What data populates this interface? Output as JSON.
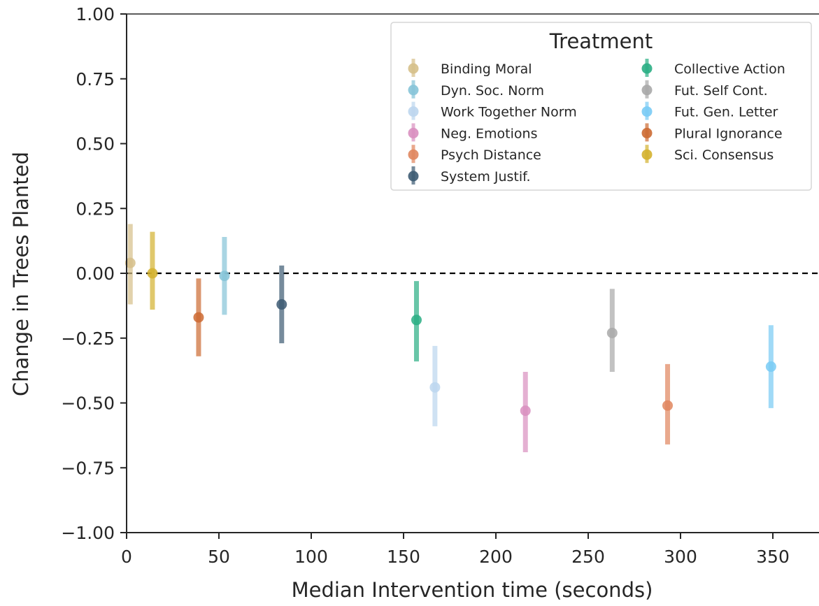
{
  "chart_data": {
    "type": "scatter",
    "subtype": "errorbar",
    "xlabel": "Median Intervention time (seconds)",
    "ylabel": "Change in Trees Planted",
    "xlim": [
      0,
      375
    ],
    "ylim": [
      -1.0,
      1.0
    ],
    "x_ticks": [
      "0",
      "50",
      "100",
      "150",
      "200",
      "250",
      "300",
      "350"
    ],
    "x_tick_values": [
      0,
      50,
      100,
      150,
      200,
      250,
      300,
      350
    ],
    "y_ticks": [
      "−1.00",
      "−0.75",
      "−0.50",
      "−0.25",
      "0.00",
      "0.25",
      "0.50",
      "0.75",
      "1.00"
    ],
    "y_tick_values": [
      -1.0,
      -0.75,
      -0.5,
      -0.25,
      0.0,
      0.25,
      0.5,
      0.75,
      1.0
    ],
    "reference_line": {
      "y": 0.0,
      "style": "dashed",
      "color": "#000000"
    },
    "grid": false,
    "legend": {
      "title": "Treatment",
      "position": "top-right",
      "columns": 2
    },
    "series": [
      {
        "name": "Binding Moral",
        "color": "#d6c08a",
        "x": 2,
        "y": 0.04,
        "ylow": -0.12,
        "yhigh": 0.19
      },
      {
        "name": "Dyn. Soc. Norm",
        "color": "#86c4d8",
        "x": 53,
        "y": -0.01,
        "ylow": -0.16,
        "yhigh": 0.14
      },
      {
        "name": "Work Together Norm",
        "color": "#bcd6ee",
        "x": 167,
        "y": -0.44,
        "ylow": -0.59,
        "yhigh": -0.28
      },
      {
        "name": "Neg. Emotions",
        "color": "#d98fc0",
        "x": 216,
        "y": -0.53,
        "ylow": -0.69,
        "yhigh": -0.38
      },
      {
        "name": "Psych Distance",
        "color": "#e0865e",
        "x": 293,
        "y": -0.51,
        "ylow": -0.66,
        "yhigh": -0.35
      },
      {
        "name": "System Justif.",
        "color": "#3d5b73",
        "x": 84,
        "y": -0.12,
        "ylow": -0.27,
        "yhigh": 0.03
      },
      {
        "name": "Collective Action",
        "color": "#2aae84",
        "x": 157,
        "y": -0.18,
        "ylow": -0.34,
        "yhigh": -0.03
      },
      {
        "name": "Fut. Self Cont.",
        "color": "#a9a9a9",
        "x": 263,
        "y": -0.23,
        "ylow": -0.38,
        "yhigh": -0.06
      },
      {
        "name": "Fut. Gen. Letter",
        "color": "#79cbf5",
        "x": 349,
        "y": -0.36,
        "ylow": -0.52,
        "yhigh": -0.2
      },
      {
        "name": "Plural Ignorance",
        "color": "#cc6a32",
        "x": 39,
        "y": -0.17,
        "ylow": -0.32,
        "yhigh": -0.02
      },
      {
        "name": "Sci. Consensus",
        "color": "#d4b12e",
        "x": 14,
        "y": 0.0,
        "ylow": -0.14,
        "yhigh": 0.16
      }
    ]
  }
}
